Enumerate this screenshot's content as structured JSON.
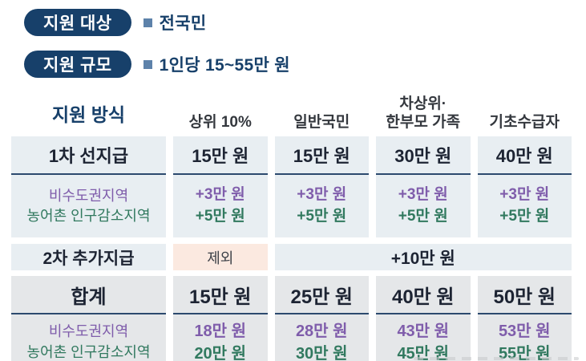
{
  "colors": {
    "badge_navy": "#17406a",
    "text_dark": "#1d2433",
    "regional_purple": "#7f5dab",
    "regional_green": "#31795f",
    "section_blue_bg": "#e8eef2",
    "section_gray_bg": "#e5e7e9",
    "excluded_peach_bg": "#fbe9e0",
    "divider_navy": "#2c4a6e",
    "bullet_blue": "#5d82aa"
  },
  "badges": [
    {
      "label": "지원 대상",
      "value": "전국민"
    },
    {
      "label": "지원 규모",
      "value": "1인당 15~55만 원"
    }
  ],
  "table": {
    "corner_label": "지원 방식",
    "columns": [
      {
        "line1": "상위 10%",
        "line2": ""
      },
      {
        "line1": "일반국민",
        "line2": ""
      },
      {
        "line1": "차상위·",
        "line2": "한부모 가족"
      },
      {
        "line1": "기초수급자",
        "line2": ""
      }
    ],
    "first_payment": {
      "label": "1차 선지급",
      "values": [
        "15만 원",
        "15만 원",
        "30만 원",
        "40만 원"
      ]
    },
    "regional_first": {
      "label_line1": "비수도권지역",
      "label_line2": "농어촌 인구감소지역",
      "line1_values": [
        "+3만 원",
        "+3만 원",
        "+3만 원",
        "+3만 원"
      ],
      "line2_values": [
        "+5만 원",
        "+5만 원",
        "+5만 원",
        "+5만 원"
      ]
    },
    "second_payment": {
      "label": "2차 추가지급",
      "excluded_label": "제외",
      "value": "+10만 원"
    },
    "total": {
      "label": "합계",
      "values": [
        "15만 원",
        "25만 원",
        "40만 원",
        "50만 원"
      ]
    },
    "regional_total": {
      "label_line1": "비수도권지역",
      "label_line2": "농어촌 인구감소지역",
      "line1_values": [
        "18만 원",
        "28만 원",
        "43만 원",
        "53만 원"
      ],
      "line2_values": [
        "20만 원",
        "30만 원",
        "45만 원",
        "55만 원"
      ]
    }
  }
}
